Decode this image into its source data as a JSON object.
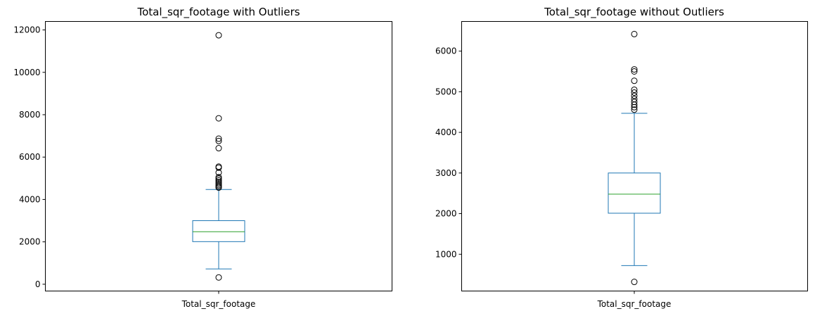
{
  "chart_data": [
    {
      "type": "box",
      "title": "Total_sqr_footage with Outliers",
      "category": "Total_sqr_footage",
      "ylim": [
        -320,
        12400
      ],
      "yticks": [
        0,
        2000,
        4000,
        6000,
        8000,
        10000,
        12000
      ],
      "ytick_labels": [
        "0",
        "2000",
        "4000",
        "6000",
        "8000",
        "10000",
        "12000"
      ],
      "box": {
        "whisker_low": 720,
        "q1": 2010,
        "median": 2480,
        "q3": 3000,
        "whisker_high": 4470
      },
      "outliers": [
        320,
        4560,
        4620,
        4680,
        4750,
        4820,
        4900,
        4980,
        5050,
        5270,
        5500,
        5550,
        6420,
        6760,
        6870,
        7830,
        11750
      ],
      "colors": {
        "box": "#1f77b4",
        "median": "#2ca02c",
        "outlier_edge": "#000000"
      },
      "grid": false
    },
    {
      "type": "box",
      "title": "Total_sqr_footage without Outliers",
      "category": "Total_sqr_footage",
      "ylim": [
        95,
        6730
      ],
      "yticks": [
        1000,
        2000,
        3000,
        4000,
        5000,
        6000
      ],
      "ytick_labels": [
        "1000",
        "2000",
        "3000",
        "4000",
        "5000",
        "6000"
      ],
      "box": {
        "whisker_low": 720,
        "q1": 2010,
        "median": 2480,
        "q3": 3000,
        "whisker_high": 4470
      },
      "outliers": [
        320,
        4560,
        4620,
        4680,
        4750,
        4820,
        4900,
        4980,
        5050,
        5270,
        5500,
        5550,
        6420
      ],
      "colors": {
        "box": "#1f77b4",
        "median": "#2ca02c",
        "outlier_edge": "#000000"
      },
      "grid": false
    }
  ]
}
